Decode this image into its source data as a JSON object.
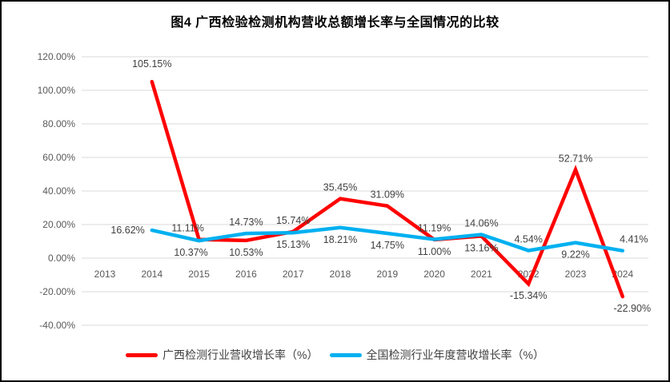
{
  "title": "图4 广西检验检测机构营收总额增长率与全国情况的比较",
  "chart_data": {
    "type": "line",
    "categories": [
      "2013",
      "2014",
      "2015",
      "2016",
      "2017",
      "2018",
      "2019",
      "2020",
      "2021",
      "2022",
      "2023",
      "2024"
    ],
    "y_ticks": [
      "120.00%",
      "100.00%",
      "80.00%",
      "60.00%",
      "40.00%",
      "20.00%",
      "0.00%",
      "-20.00%",
      "-40.00%"
    ],
    "ylim": [
      -40,
      120
    ],
    "y_step": 20,
    "grid": true,
    "legend_position": "bottom",
    "axis_label_color": "#595959",
    "data_label_color": "#404040",
    "gridline_color": "#d9d9d9",
    "series": [
      {
        "name": "广西检测行业营收增长率（%）",
        "color": "#fe0000",
        "values": [
          null,
          105.15,
          11.11,
          10.53,
          15.74,
          35.45,
          31.09,
          11.0,
          13.16,
          -15.34,
          52.71,
          -22.9
        ],
        "labels": [
          null,
          "105.15%",
          "11.11%",
          "10.53%",
          "15.74%",
          "35.45%",
          "31.09%",
          "11.00%",
          "13.16%",
          "-15.34%",
          "52.71%",
          "-22.90%"
        ],
        "label_pos": [
          null,
          "above",
          "above",
          "below",
          "above",
          "above",
          "above",
          "below",
          "below",
          "below",
          "above",
          "below"
        ]
      },
      {
        "name": "全国检测行业年度营收增长率（%）",
        "color": "#00b0f0",
        "values": [
          null,
          16.62,
          10.37,
          14.73,
          15.13,
          18.21,
          14.75,
          11.19,
          14.06,
          4.54,
          9.22,
          4.41
        ],
        "labels": [
          null,
          "16.62%",
          "10.37%",
          "14.73%",
          "15.13%",
          "18.21%",
          "14.75%",
          "11.19%",
          "14.06%",
          "4.54%",
          "9.22%",
          "4.41%"
        ],
        "label_pos": [
          null,
          "left",
          "below",
          "above",
          "below",
          "below",
          "below",
          "above",
          "above",
          "above",
          "below",
          "above"
        ]
      }
    ]
  }
}
